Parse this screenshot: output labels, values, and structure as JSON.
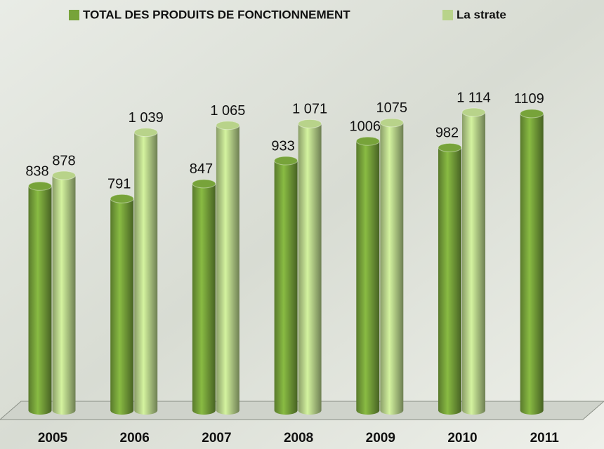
{
  "chart_data": {
    "type": "bar",
    "categories": [
      "2005",
      "2006",
      "2007",
      "2008",
      "2009",
      "2010",
      "2011"
    ],
    "series": [
      {
        "name": "TOTAL DES PRODUITS DE FONCTIONNEMENT",
        "color": "#77a33a",
        "values": [
          838,
          791,
          847,
          933,
          1006,
          982,
          1109
        ]
      },
      {
        "name": "La strate",
        "color": "#b8d38a",
        "values": [
          878,
          1039,
          1065,
          1071,
          1075,
          1114,
          null
        ],
        "value_labels": [
          "878",
          "1 039",
          "1 065",
          "1 071",
          "1075",
          "1 114",
          null
        ]
      }
    ]
  }
}
